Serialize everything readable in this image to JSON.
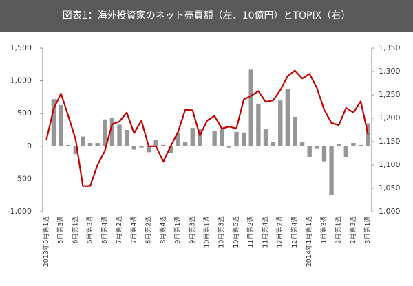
{
  "chart_data": {
    "type": "bar-line",
    "title": "図表1：海外投資家のネット売買額（左、10億円）とTOPIX（右）",
    "categories": [
      "2013年5月第1週",
      null,
      "5月第3週",
      null,
      "6月第1週",
      null,
      "6月第3週",
      null,
      "6月第4週",
      null,
      "7月第2週",
      null,
      "7月第4週",
      null,
      "8月第2週",
      null,
      "8月第4週",
      null,
      "9月第1週",
      null,
      "9月第3週",
      null,
      "10月第1週",
      null,
      "10月第3週",
      null,
      "10月第5週",
      null,
      "11月第2週",
      null,
      "11月第4週",
      null,
      "12月第2週",
      null,
      "12月第4週",
      null,
      "2014年1月第1週",
      null,
      "1月第3週",
      null,
      "2月第1週",
      null,
      "2月第3週",
      null,
      "3月第1週"
    ],
    "series": [
      {
        "type": "bar",
        "color": "#969696",
        "values": [
          10,
          720,
          630,
          20,
          -120,
          150,
          50,
          50,
          410,
          430,
          330,
          250,
          -50,
          -20,
          -90,
          100,
          20,
          -100,
          210,
          60,
          280,
          260,
          10,
          230,
          260,
          -20,
          220,
          210,
          1170,
          650,
          260,
          70,
          700,
          880,
          450,
          60,
          -160,
          -40,
          -230,
          -740,
          30,
          -160,
          50,
          20,
          350
        ]
      },
      {
        "type": "line",
        "axis": "y2",
        "color": "#c00000",
        "values": [
          1153,
          1220,
          1253,
          1205,
          1155,
          1055,
          1055,
          1100,
          1130,
          1187,
          1193,
          1212,
          1168,
          1195,
          1140,
          1140,
          1107,
          1140,
          1170,
          1218,
          1217,
          1163,
          1195,
          1205,
          1178,
          1182,
          1178,
          1240,
          1248,
          1258,
          1235,
          1238,
          1260,
          1290,
          1302,
          1285,
          1295,
          1265,
          1218,
          1190,
          1185,
          1222,
          1212,
          1236,
          1165
        ]
      }
    ],
    "ylim": [
      -1000,
      1500
    ],
    "yticks": [
      {
        "value": -1000,
        "label": "-1,000"
      },
      -500,
      0,
      500,
      {
        "value": 1000,
        "label": "1,000"
      },
      {
        "value": 1500,
        "label": "1,500"
      }
    ],
    "y2lim": [
      1000,
      1350
    ],
    "y2ticks": [
      {
        "value": 1000,
        "label": "1,000"
      },
      {
        "value": 1050,
        "label": "1,050"
      },
      {
        "value": 1100,
        "label": "1,100"
      },
      {
        "value": 1150,
        "label": "1,150"
      },
      {
        "value": 1200,
        "label": "1,200"
      },
      {
        "value": 1250,
        "label": "1,250"
      },
      {
        "value": 1300,
        "label": "1,300"
      },
      {
        "value": 1350,
        "label": "1,350"
      }
    ]
  }
}
